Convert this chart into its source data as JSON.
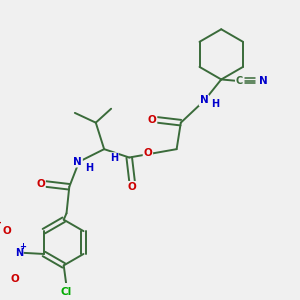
{
  "background_color": "#f0f0f0",
  "bond_color": "#3a6b3a",
  "atom_colors": {
    "O": "#cc0000",
    "N": "#0000cc",
    "Cl": "#00aa00",
    "C": "#3a6b3a",
    "H": "#0000cc"
  },
  "figsize": [
    3.0,
    3.0
  ],
  "dpi": 100
}
